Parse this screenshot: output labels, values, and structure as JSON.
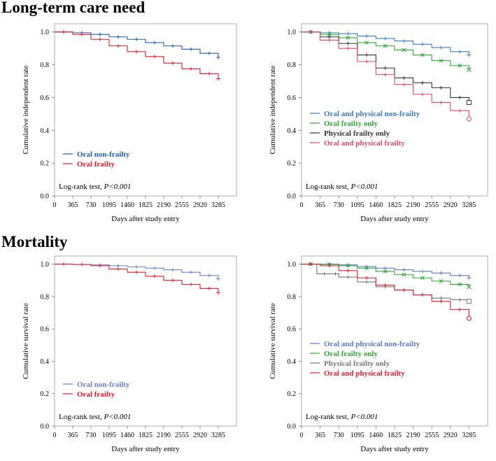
{
  "sections": {
    "ltc_title": "Long-term care need",
    "mort_title": "Mortality"
  },
  "logrank": {
    "prefix": "Log-rank test, ",
    "p": "P<0.001"
  },
  "chart_data": [
    {
      "id": "ltc-oral",
      "type": "line",
      "title": "Long-term care need",
      "xlabel": "Days after study entry",
      "ylabel": "Cumulative independent rate",
      "xticks": [
        0,
        365,
        730,
        1095,
        1460,
        1825,
        2190,
        2555,
        2920,
        3285
      ],
      "yticks": [
        0.0,
        0.2,
        0.4,
        0.6,
        0.8,
        1.0
      ],
      "xlim": [
        0,
        3650
      ],
      "ylim": [
        0,
        1.05
      ],
      "legend": "bottom-left",
      "annotation": "Log-rank test, P<0.001",
      "series": [
        {
          "name": "Oral non-frailty",
          "color": "#1f5fb0",
          "censor": "+",
          "x": [
            0,
            365,
            730,
            1095,
            1460,
            1825,
            2190,
            2555,
            2920,
            3285
          ],
          "y": [
            1.0,
            0.995,
            0.985,
            0.97,
            0.955,
            0.935,
            0.915,
            0.895,
            0.87,
            0.845
          ]
        },
        {
          "name": "Oral frailty",
          "color": "#e8192c",
          "censor": "+",
          "x": [
            0,
            365,
            730,
            1095,
            1460,
            1825,
            2190,
            2555,
            2920,
            3285
          ],
          "y": [
            1.0,
            0.985,
            0.955,
            0.915,
            0.88,
            0.85,
            0.81,
            0.775,
            0.745,
            0.715
          ]
        }
      ]
    },
    {
      "id": "ltc-combined",
      "type": "line",
      "title": "Long-term care need",
      "xlabel": "Days after study entry",
      "ylabel": "Cumulative independent rate",
      "xticks": [
        0,
        365,
        730,
        1095,
        1460,
        1825,
        2190,
        2555,
        2920,
        3285
      ],
      "yticks": [
        0.0,
        0.2,
        0.4,
        0.6,
        0.8,
        1.0
      ],
      "xlim": [
        0,
        3650
      ],
      "ylim": [
        0,
        1.05
      ],
      "legend": "middle-left",
      "annotation": "Log-rank test, P<0.001",
      "series": [
        {
          "name": "Oral and physical non-frailty",
          "color": "#3a7cc6",
          "censor": "+",
          "x": [
            0,
            365,
            730,
            1095,
            1460,
            1825,
            2190,
            2555,
            2920,
            3285
          ],
          "y": [
            1.0,
            0.995,
            0.99,
            0.975,
            0.96,
            0.945,
            0.925,
            0.905,
            0.88,
            0.86
          ]
        },
        {
          "name": "Oral frailty only",
          "color": "#2da834",
          "censor": "x",
          "x": [
            0,
            365,
            730,
            1095,
            1460,
            1825,
            2190,
            2555,
            2920,
            3285
          ],
          "y": [
            1.0,
            0.985,
            0.965,
            0.935,
            0.915,
            0.89,
            0.86,
            0.825,
            0.795,
            0.77
          ]
        },
        {
          "name": "Physical frailty only",
          "color": "#333333",
          "censor": "square",
          "x": [
            0,
            365,
            730,
            1095,
            1460,
            1825,
            2190,
            2555,
            2920,
            3285
          ],
          "y": [
            1.0,
            0.97,
            0.93,
            0.86,
            0.78,
            0.72,
            0.69,
            0.66,
            0.6,
            0.57
          ]
        },
        {
          "name": "Oral and physical frailty",
          "color": "#e8476a",
          "censor": "circle",
          "x": [
            0,
            365,
            730,
            1095,
            1460,
            1825,
            2190,
            2555,
            2920,
            3285
          ],
          "y": [
            1.0,
            0.95,
            0.9,
            0.82,
            0.74,
            0.68,
            0.62,
            0.57,
            0.52,
            0.47
          ]
        }
      ]
    },
    {
      "id": "mort-oral",
      "type": "line",
      "title": "Mortality",
      "xlabel": "Days after study entry",
      "ylabel": "Cumulative survival rate",
      "xticks": [
        0,
        365,
        730,
        1095,
        1460,
        1825,
        2190,
        2555,
        2920,
        3285
      ],
      "yticks": [
        0.0,
        0.2,
        0.4,
        0.6,
        0.8,
        1.0
      ],
      "xlim": [
        0,
        3650
      ],
      "ylim": [
        0,
        1.05
      ],
      "legend": "bottom-left",
      "annotation": "Log-rank test, P<0.001",
      "series": [
        {
          "name": "Oral non-frailty",
          "color": "#6b7fd1",
          "censor": "+",
          "x": [
            0,
            365,
            730,
            1095,
            1460,
            1825,
            2190,
            2555,
            2920,
            3285
          ],
          "y": [
            1.0,
            0.998,
            0.995,
            0.99,
            0.983,
            0.975,
            0.965,
            0.95,
            0.93,
            0.91
          ]
        },
        {
          "name": "Oral frailty",
          "color": "#e8192c",
          "censor": "+",
          "x": [
            0,
            365,
            730,
            1095,
            1460,
            1825,
            2190,
            2555,
            2920,
            3285
          ],
          "y": [
            1.0,
            0.998,
            0.99,
            0.97,
            0.95,
            0.925,
            0.9,
            0.875,
            0.85,
            0.825
          ]
        }
      ]
    },
    {
      "id": "mort-combined",
      "type": "line",
      "title": "Mortality",
      "xlabel": "Days after study entry",
      "ylabel": "Cumulative survival rate",
      "xticks": [
        0,
        365,
        730,
        1095,
        1460,
        1825,
        2190,
        2555,
        2920,
        3285
      ],
      "yticks": [
        0.0,
        0.2,
        0.4,
        0.6,
        0.8,
        1.0
      ],
      "xlim": [
        0,
        3650
      ],
      "ylim": [
        0,
        1.05
      ],
      "legend": "middle-left",
      "annotation": "Log-rank test, P<0.001",
      "series": [
        {
          "name": "Oral and physical non-frailty",
          "color": "#5a78cf",
          "censor": "+",
          "x": [
            0,
            365,
            730,
            1095,
            1460,
            1825,
            2190,
            2555,
            2920,
            3285
          ],
          "y": [
            1.0,
            1.0,
            0.995,
            0.985,
            0.975,
            0.965,
            0.955,
            0.945,
            0.93,
            0.915
          ]
        },
        {
          "name": "Oral frailty only",
          "color": "#2da834",
          "censor": "x",
          "x": [
            0,
            365,
            730,
            1095,
            1460,
            1825,
            2190,
            2555,
            2920,
            3285
          ],
          "y": [
            1.0,
            0.998,
            0.99,
            0.975,
            0.955,
            0.935,
            0.915,
            0.895,
            0.875,
            0.86
          ]
        },
        {
          "name": "Physical frailty only",
          "color": "#777777",
          "censor": "square",
          "x": [
            0,
            300,
            600,
            730,
            1095,
            1460,
            1825,
            2190,
            2555,
            2920,
            3285
          ],
          "y": [
            1.0,
            0.94,
            0.94,
            0.92,
            0.89,
            0.86,
            0.84,
            0.81,
            0.79,
            0.78,
            0.77
          ]
        },
        {
          "name": "Oral and physical frailty",
          "color": "#e8192c",
          "censor": "circle",
          "x": [
            0,
            365,
            730,
            1095,
            1460,
            1825,
            2190,
            2555,
            2920,
            3285
          ],
          "y": [
            1.0,
            0.99,
            0.96,
            0.915,
            0.87,
            0.84,
            0.81,
            0.77,
            0.72,
            0.665
          ]
        }
      ]
    }
  ]
}
